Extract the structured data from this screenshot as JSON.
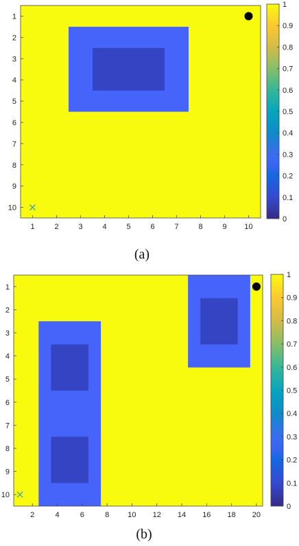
{
  "chart_data": [
    {
      "type": "heatmap",
      "panel_label": "(a)",
      "grid": {
        "cols": 10,
        "rows": 10
      },
      "xlim": [
        0.5,
        10.5
      ],
      "ylim": [
        0.5,
        10.5
      ],
      "x_ticks": [
        "1",
        "2",
        "3",
        "4",
        "5",
        "6",
        "7",
        "8",
        "9",
        "10"
      ],
      "y_ticks": [
        "1",
        "2",
        "3",
        "4",
        "5",
        "6",
        "7",
        "8",
        "9",
        "10"
      ],
      "colorbar": {
        "range": [
          0,
          1
        ],
        "ticks": [
          "0",
          "0.1",
          "0.2",
          "0.3",
          "0.4",
          "0.5",
          "0.6",
          "0.7",
          "0.8",
          "0.9",
          "1"
        ]
      },
      "background_value": 1.0,
      "regions": [
        {
          "value": 0.27,
          "col_range": [
            3,
            7
          ],
          "row_range": [
            2,
            5
          ]
        },
        {
          "value": 0.08,
          "col_range": [
            4,
            6
          ],
          "row_range": [
            3,
            4
          ]
        }
      ],
      "markers": [
        {
          "symbol": "dot",
          "col": 10,
          "row": 1,
          "color": "#000000"
        },
        {
          "symbol": "x",
          "col": 1,
          "row": 10,
          "color": "#3aa0a0"
        }
      ]
    },
    {
      "type": "heatmap",
      "panel_label": "(b)",
      "grid": {
        "cols": 20,
        "rows": 10
      },
      "xlim": [
        0.5,
        20.5
      ],
      "ylim": [
        0.5,
        10.5
      ],
      "x_ticks": [
        "2",
        "4",
        "6",
        "8",
        "10",
        "12",
        "14",
        "16",
        "18",
        "20"
      ],
      "y_ticks": [
        "1",
        "2",
        "3",
        "4",
        "5",
        "6",
        "7",
        "8",
        "9",
        "10"
      ],
      "colorbar": {
        "range": [
          0,
          1
        ],
        "ticks": [
          "0",
          "0.1",
          "0.2",
          "0.3",
          "0.4",
          "0.5",
          "0.6",
          "0.7",
          "0.8",
          "0.9",
          "1"
        ]
      },
      "background_value": 1.0,
      "regions": [
        {
          "value": 0.27,
          "col_range": [
            3,
            7
          ],
          "row_range": [
            3,
            10
          ]
        },
        {
          "value": 0.08,
          "col_range": [
            4,
            6
          ],
          "row_range": [
            4,
            5
          ]
        },
        {
          "value": 0.08,
          "col_range": [
            4,
            6
          ],
          "row_range": [
            8,
            9
          ]
        },
        {
          "value": 0.27,
          "col_range": [
            15,
            19
          ],
          "row_range": [
            1,
            4
          ]
        },
        {
          "value": 0.08,
          "col_range": [
            16,
            18
          ],
          "row_range": [
            2,
            3
          ]
        }
      ],
      "markers": [
        {
          "symbol": "dot",
          "col": 20,
          "row": 1,
          "color": "#000000"
        },
        {
          "symbol": "x",
          "col": 1,
          "row": 10,
          "color": "#3aa0a0"
        }
      ]
    }
  ]
}
